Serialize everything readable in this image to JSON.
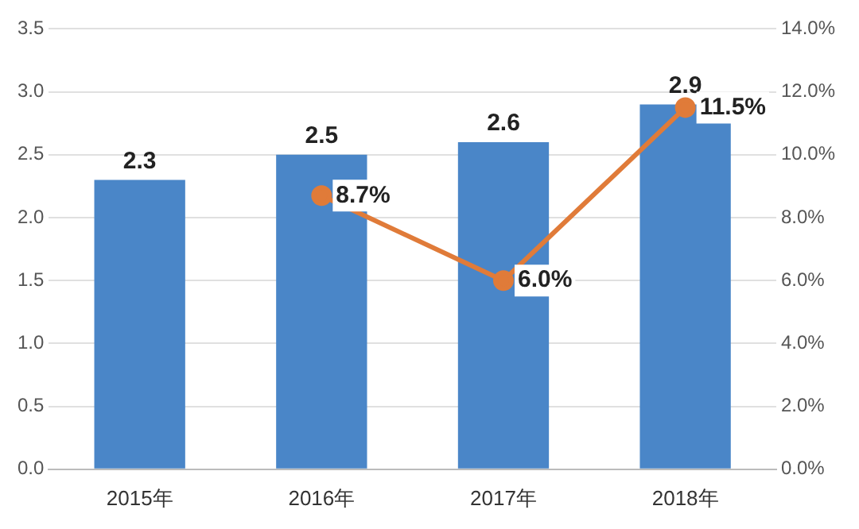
{
  "chart_data": {
    "type": "bar",
    "categories": [
      "2015年",
      "2016年",
      "2017年",
      "2018年"
    ],
    "series": [
      {
        "color": "#4a86c8",
        "values": [
          2.3,
          2.5,
          2.6,
          2.9
        ],
        "value_labels": [
          "2.3",
          "2.5",
          "2.6",
          "2.9"
        ]
      },
      {
        "type": "line",
        "axis": "y2",
        "color": "#e07b39",
        "values": [
          null,
          8.7,
          6.0,
          11.5
        ],
        "value_labels": [
          null,
          "8.7%",
          "6.0%",
          "11.5%"
        ],
        "marker": "circle"
      }
    ],
    "ylim": [
      0,
      3.5
    ],
    "yticks": [
      {
        "value": 0,
        "label": "0.0"
      },
      {
        "value": 0.5,
        "label": "0.5"
      },
      {
        "value": 1,
        "label": "1.0"
      },
      {
        "value": 1.5,
        "label": "1.5"
      },
      {
        "value": 2,
        "label": "2.0"
      },
      {
        "value": 2.5,
        "label": "2.5"
      },
      {
        "value": 3,
        "label": "3.0"
      },
      {
        "value": 3.5,
        "label": "3.5"
      }
    ],
    "y2lim": [
      0,
      14
    ],
    "y2ticks": [
      {
        "value": 0,
        "label": "0.0%"
      },
      {
        "value": 2,
        "label": "2.0%"
      },
      {
        "value": 4,
        "label": "4.0%"
      },
      {
        "value": 6,
        "label": "6.0%"
      },
      {
        "value": 8,
        "label": "8.0%"
      },
      {
        "value": 10,
        "label": "10.0%"
      },
      {
        "value": 12,
        "label": "12.0%"
      },
      {
        "value": 14,
        "label": "14.0%"
      }
    ],
    "grid": "y",
    "legend": false
  }
}
